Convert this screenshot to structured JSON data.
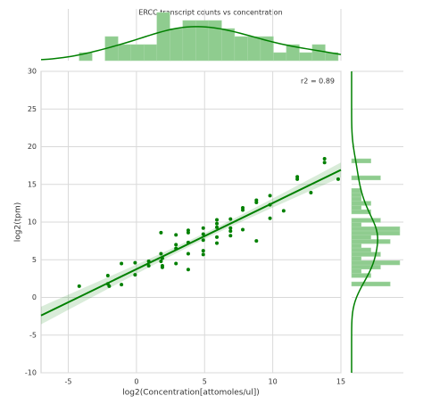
{
  "chart_data": {
    "type": "scatter",
    "title": "ERCC transcript counts vs concentration",
    "x_label": "log2(Concentration[attomoles/ul])",
    "y_label": "log2(tpm)",
    "annotation": "r2 = 0.89",
    "color": "#008000",
    "hist_color": "#8fcc8f",
    "grid": true,
    "regression": true,
    "marginals": true,
    "xlim": [
      -7,
      15
    ],
    "xticks": [
      -5,
      0,
      5,
      10,
      15
    ],
    "ylim": [
      -10,
      30
    ],
    "yticks": [
      -10,
      -5,
      0,
      5,
      10,
      15,
      20,
      25,
      30
    ],
    "x": [
      -4.2,
      -2.1,
      -2.1,
      -2.0,
      -1.1,
      -1.1,
      -0.1,
      -0.1,
      0.9,
      0.9,
      1.8,
      1.8,
      1.8,
      1.9,
      1.9,
      1.9,
      2.9,
      2.9,
      2.9,
      2.9,
      3.8,
      3.8,
      3.8,
      3.8,
      3.8,
      4.9,
      4.9,
      4.9,
      4.9,
      4.9,
      5.9,
      5.9,
      5.9,
      5.9,
      5.9,
      6.9,
      6.9,
      6.9,
      6.9,
      7.8,
      7.8,
      7.8,
      8.8,
      8.8,
      8.8,
      9.8,
      9.8,
      9.8,
      10.8,
      11.8,
      11.8,
      12.8,
      13.8,
      13.8,
      14.8
    ],
    "values": [
      1.5,
      2.9,
      1.8,
      1.5,
      4.5,
      1.7,
      4.6,
      3.0,
      4.2,
      4.8,
      4.8,
      5.8,
      8.6,
      4.0,
      4.2,
      5.2,
      4.5,
      6.5,
      7.0,
      8.3,
      3.7,
      5.8,
      7.3,
      8.6,
      8.9,
      5.7,
      6.2,
      7.6,
      8.4,
      9.2,
      7.2,
      8.0,
      9.3,
      9.8,
      10.3,
      8.2,
      8.8,
      9.2,
      10.4,
      9.0,
      11.6,
      11.9,
      7.5,
      12.6,
      12.9,
      10.5,
      12.3,
      13.5,
      11.5,
      15.7,
      16.0,
      13.9,
      17.9,
      18.4,
      15.7
    ]
  }
}
